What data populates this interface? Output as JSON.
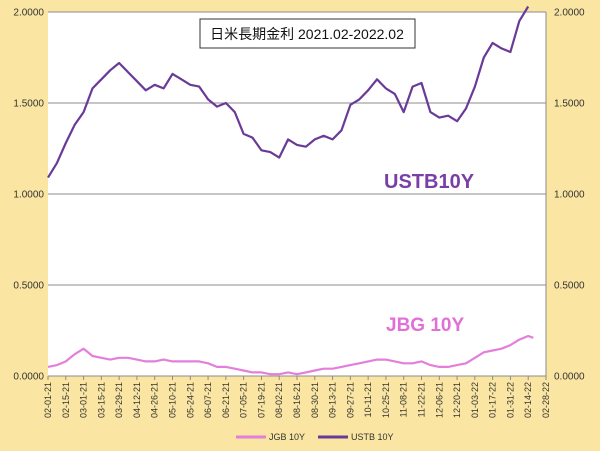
{
  "colors": {
    "background": "#FAE6A2",
    "plot_background": "#FFFFFF",
    "gridline": "#8C8C8C",
    "ustb": "#6A3A98",
    "ustb_label": "#7A3FA6",
    "jgb": "#E37FDB",
    "jgb_label": "#E06FD8"
  },
  "chart_data": {
    "type": "line",
    "title": "日米長期金利 2021.02-2022.02",
    "ylim": [
      0,
      2
    ],
    "y_ticks": [
      "0.0000",
      "0.5000",
      "1.0000",
      "1.5000",
      "2.0000"
    ],
    "y_tick_values": [
      0,
      0.5,
      1.0,
      1.5,
      2.0
    ],
    "x_ticks": [
      "02-01-21",
      "02-15-21",
      "03-01-21",
      "03-15-21",
      "03-29-21",
      "04-12-21",
      "04-26-21",
      "05-10-21",
      "05-24-21",
      "06-07-21",
      "06-21-21",
      "07-05-21",
      "07-19-21",
      "08-02-21",
      "08-16-21",
      "08-30-21",
      "09-13-21",
      "09-27-21",
      "10-11-21",
      "10-25-21",
      "11-08-21",
      "11-22-21",
      "12-06-21",
      "12-20-21",
      "01-03-22",
      "01-17-22",
      "01-31-22",
      "02-14-22",
      "02-28-22"
    ],
    "x_domain": [
      "2021-02-01",
      "2022-02-28"
    ],
    "grid": true,
    "legend_position": "bottom",
    "annotations": {
      "ustb": "USTB10Y",
      "jgb": "JBG 10Y"
    },
    "series": [
      {
        "name": "USTB 10Y",
        "x": [
          "2021-02-01",
          "2021-02-08",
          "2021-02-15",
          "2021-02-22",
          "2021-03-01",
          "2021-03-08",
          "2021-03-15",
          "2021-03-22",
          "2021-03-29",
          "2021-04-05",
          "2021-04-12",
          "2021-04-19",
          "2021-04-26",
          "2021-05-03",
          "2021-05-10",
          "2021-05-17",
          "2021-05-24",
          "2021-05-31",
          "2021-06-07",
          "2021-06-14",
          "2021-06-21",
          "2021-06-28",
          "2021-07-05",
          "2021-07-12",
          "2021-07-19",
          "2021-07-26",
          "2021-08-02",
          "2021-08-09",
          "2021-08-16",
          "2021-08-23",
          "2021-08-30",
          "2021-09-06",
          "2021-09-13",
          "2021-09-20",
          "2021-09-27",
          "2021-10-04",
          "2021-10-11",
          "2021-10-18",
          "2021-10-25",
          "2021-11-01",
          "2021-11-08",
          "2021-11-15",
          "2021-11-22",
          "2021-11-29",
          "2021-12-06",
          "2021-12-13",
          "2021-12-20",
          "2021-12-27",
          "2022-01-03",
          "2022-01-10",
          "2022-01-17",
          "2022-01-24",
          "2022-01-31",
          "2022-02-07",
          "2022-02-14"
        ],
        "values": [
          1.09,
          1.17,
          1.28,
          1.38,
          1.45,
          1.58,
          1.63,
          1.68,
          1.72,
          1.67,
          1.62,
          1.57,
          1.6,
          1.58,
          1.66,
          1.63,
          1.6,
          1.59,
          1.52,
          1.48,
          1.5,
          1.45,
          1.33,
          1.31,
          1.24,
          1.23,
          1.2,
          1.3,
          1.27,
          1.26,
          1.3,
          1.32,
          1.3,
          1.35,
          1.49,
          1.52,
          1.57,
          1.63,
          1.58,
          1.55,
          1.45,
          1.59,
          1.61,
          1.45,
          1.42,
          1.43,
          1.4,
          1.47,
          1.59,
          1.75,
          1.83,
          1.8,
          1.78,
          1.95,
          2.03
        ]
      },
      {
        "name": "JGB 10Y",
        "x": [
          "2021-02-01",
          "2021-02-08",
          "2021-02-15",
          "2021-02-22",
          "2021-03-01",
          "2021-03-08",
          "2021-03-15",
          "2021-03-22",
          "2021-03-29",
          "2021-04-05",
          "2021-04-12",
          "2021-04-19",
          "2021-04-26",
          "2021-05-03",
          "2021-05-10",
          "2021-05-17",
          "2021-05-24",
          "2021-05-31",
          "2021-06-07",
          "2021-06-14",
          "2021-06-21",
          "2021-06-28",
          "2021-07-05",
          "2021-07-12",
          "2021-07-19",
          "2021-07-26",
          "2021-08-02",
          "2021-08-09",
          "2021-08-16",
          "2021-08-23",
          "2021-08-30",
          "2021-09-06",
          "2021-09-13",
          "2021-09-20",
          "2021-09-27",
          "2021-10-04",
          "2021-10-11",
          "2021-10-18",
          "2021-10-25",
          "2021-11-01",
          "2021-11-08",
          "2021-11-15",
          "2021-11-22",
          "2021-11-29",
          "2021-12-06",
          "2021-12-13",
          "2021-12-20",
          "2021-12-27",
          "2022-01-03",
          "2022-01-10",
          "2022-01-17",
          "2022-01-24",
          "2022-01-31",
          "2022-02-07",
          "2022-02-14",
          "2022-02-18"
        ],
        "values": [
          0.05,
          0.06,
          0.08,
          0.12,
          0.15,
          0.11,
          0.1,
          0.09,
          0.1,
          0.1,
          0.09,
          0.08,
          0.08,
          0.09,
          0.08,
          0.08,
          0.08,
          0.08,
          0.07,
          0.05,
          0.05,
          0.04,
          0.03,
          0.02,
          0.02,
          0.01,
          0.01,
          0.02,
          0.01,
          0.02,
          0.03,
          0.04,
          0.04,
          0.05,
          0.06,
          0.07,
          0.08,
          0.09,
          0.09,
          0.08,
          0.07,
          0.07,
          0.08,
          0.06,
          0.05,
          0.05,
          0.06,
          0.07,
          0.1,
          0.13,
          0.14,
          0.15,
          0.17,
          0.2,
          0.22,
          0.21
        ]
      }
    ]
  }
}
